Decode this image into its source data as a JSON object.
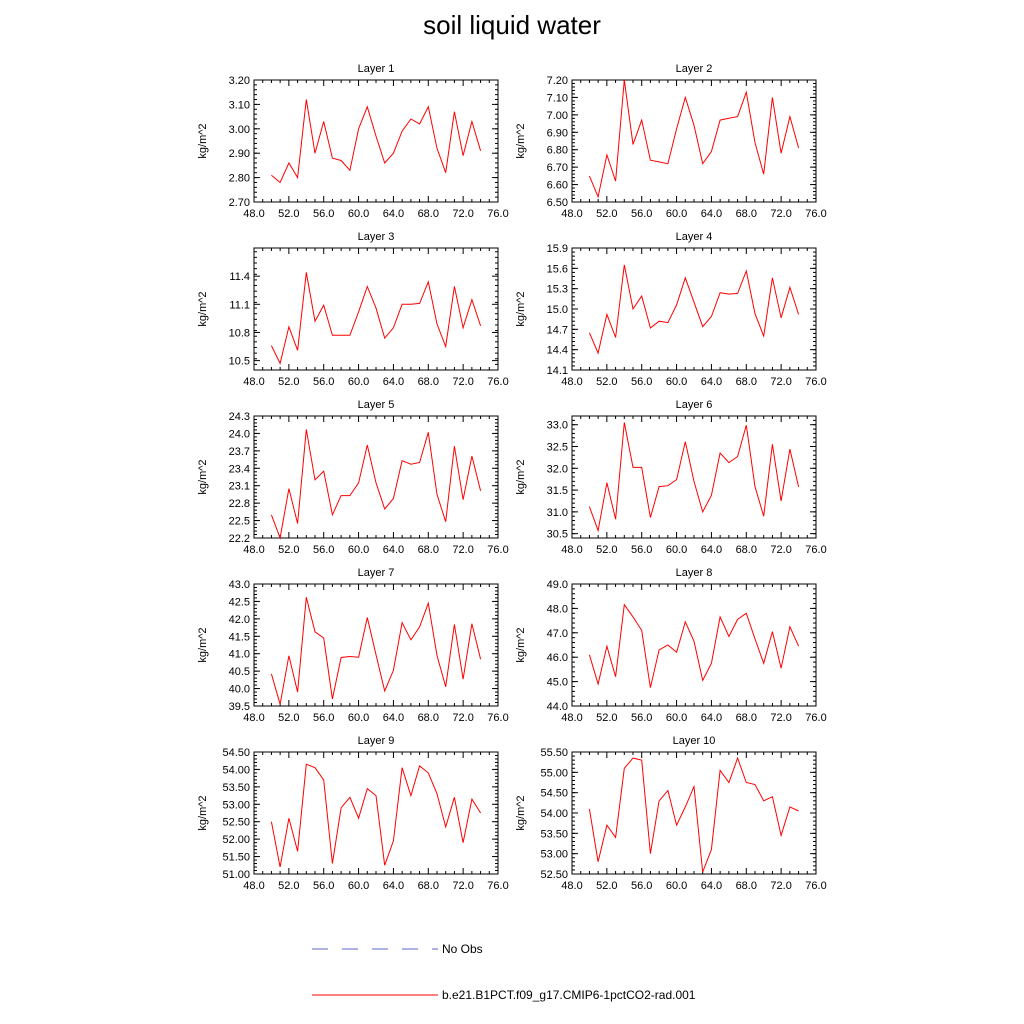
{
  "title": "soil liquid water",
  "legend": [
    {
      "label": "No Obs",
      "color": "#5a64c8",
      "dash": "dashed"
    },
    {
      "label": "b.e21.B1PCT.f09_g17.CMIP6-1pctCO2-rad.001",
      "color": "#ff0000",
      "dash": "solid"
    }
  ],
  "chart_data": [
    {
      "type": "line",
      "title": "Layer 1",
      "ylabel": "kg/m^2",
      "xlim": [
        48,
        76
      ],
      "ylim": [
        2.7,
        3.2
      ],
      "xticks": [
        "48.0",
        "52.0",
        "56.0",
        "60.0",
        "64.0",
        "68.0",
        "72.0",
        "76.0"
      ],
      "yticks": [
        "2.70",
        "2.80",
        "2.90",
        "3.00",
        "3.10",
        "3.20"
      ],
      "x": [
        50,
        51,
        52,
        53,
        54,
        55,
        56,
        57,
        58,
        59,
        60,
        61,
        62,
        63,
        64,
        65,
        66,
        67,
        68,
        69,
        70,
        71,
        72,
        73,
        74
      ],
      "series": [
        {
          "name": "b.e21.B1PCT.f09_g17.CMIP6-1pctCO2-rad.001",
          "values": [
            2.81,
            2.78,
            2.86,
            2.8,
            3.12,
            2.9,
            3.03,
            2.88,
            2.87,
            2.83,
            3.0,
            3.09,
            2.97,
            2.86,
            2.9,
            2.99,
            3.04,
            3.02,
            3.09,
            2.92,
            2.82,
            3.07,
            2.89,
            3.03,
            2.91
          ]
        }
      ]
    },
    {
      "type": "line",
      "title": "Layer 2",
      "ylabel": "kg/m^2",
      "xlim": [
        48,
        76
      ],
      "ylim": [
        6.5,
        7.2
      ],
      "xticks": [
        "48.0",
        "52.0",
        "56.0",
        "60.0",
        "64.0",
        "68.0",
        "72.0",
        "76.0"
      ],
      "yticks": [
        "6.50",
        "6.60",
        "6.70",
        "6.80",
        "6.90",
        "7.00",
        "7.10",
        "7.20"
      ],
      "x": [
        50,
        51,
        52,
        53,
        54,
        55,
        56,
        57,
        58,
        59,
        60,
        61,
        62,
        63,
        64,
        65,
        66,
        67,
        68,
        69,
        70,
        71,
        72,
        73,
        74
      ],
      "series": [
        {
          "name": "b.e21.B1PCT.f09_g17.CMIP6-1pctCO2-rad.001",
          "values": [
            6.65,
            6.53,
            6.77,
            6.62,
            7.2,
            6.83,
            6.97,
            6.74,
            6.73,
            6.72,
            6.92,
            7.1,
            6.94,
            6.72,
            6.79,
            6.97,
            6.98,
            6.99,
            7.13,
            6.84,
            6.66,
            7.1,
            6.78,
            6.99,
            6.81
          ]
        }
      ]
    },
    {
      "type": "line",
      "title": "Layer 3",
      "ylabel": "kg/m^2",
      "xlim": [
        48,
        76
      ],
      "ylim": [
        10.4,
        11.7
      ],
      "xticks": [
        "48.0",
        "52.0",
        "56.0",
        "60.0",
        "64.0",
        "68.0",
        "72.0",
        "76.0"
      ],
      "yticks": [
        "10.5",
        "10.8",
        "11.1",
        "11.4"
      ],
      "x": [
        50,
        51,
        52,
        53,
        54,
        55,
        56,
        57,
        58,
        59,
        60,
        61,
        62,
        63,
        64,
        65,
        66,
        67,
        68,
        69,
        70,
        71,
        72,
        73,
        74
      ],
      "series": [
        {
          "name": "b.e21.B1PCT.f09_g17.CMIP6-1pctCO2-rad.001",
          "values": [
            10.66,
            10.47,
            10.86,
            10.61,
            11.44,
            10.92,
            11.09,
            10.77,
            10.77,
            10.77,
            11.02,
            11.29,
            11.06,
            10.74,
            10.85,
            11.1,
            11.1,
            11.11,
            11.34,
            10.89,
            10.65,
            11.29,
            10.85,
            11.15,
            10.87
          ]
        }
      ]
    },
    {
      "type": "line",
      "title": "Layer 4",
      "ylabel": "kg/m^2",
      "xlim": [
        48,
        76
      ],
      "ylim": [
        14.1,
        15.9
      ],
      "xticks": [
        "48.0",
        "52.0",
        "56.0",
        "60.0",
        "64.0",
        "68.0",
        "72.0",
        "76.0"
      ],
      "yticks": [
        "14.1",
        "14.4",
        "14.7",
        "15.0",
        "15.3",
        "15.6",
        "15.9"
      ],
      "x": [
        50,
        51,
        52,
        53,
        54,
        55,
        56,
        57,
        58,
        59,
        60,
        61,
        62,
        63,
        64,
        65,
        66,
        67,
        68,
        69,
        70,
        71,
        72,
        73,
        74
      ],
      "series": [
        {
          "name": "b.e21.B1PCT.f09_g17.CMIP6-1pctCO2-rad.001",
          "values": [
            14.65,
            14.35,
            14.92,
            14.58,
            15.65,
            15.0,
            15.19,
            14.72,
            14.82,
            14.8,
            15.06,
            15.46,
            15.1,
            14.74,
            14.89,
            15.24,
            15.22,
            15.23,
            15.56,
            14.93,
            14.6,
            15.46,
            14.87,
            15.32,
            14.92
          ]
        }
      ]
    },
    {
      "type": "line",
      "title": "Layer 5",
      "ylabel": "kg/m^2",
      "xlim": [
        48,
        76
      ],
      "ylim": [
        22.2,
        24.3
      ],
      "xticks": [
        "48.0",
        "52.0",
        "56.0",
        "60.0",
        "64.0",
        "68.0",
        "72.0",
        "76.0"
      ],
      "yticks": [
        "22.2",
        "22.5",
        "22.8",
        "23.1",
        "23.4",
        "23.7",
        "24.0",
        "24.3"
      ],
      "x": [
        50,
        51,
        52,
        53,
        54,
        55,
        56,
        57,
        58,
        59,
        60,
        61,
        62,
        63,
        64,
        65,
        66,
        67,
        68,
        69,
        70,
        71,
        72,
        73,
        74
      ],
      "series": [
        {
          "name": "b.e21.B1PCT.f09_g17.CMIP6-1pctCO2-rad.001",
          "values": [
            22.6,
            22.2,
            23.05,
            22.45,
            24.07,
            23.2,
            23.35,
            22.6,
            22.93,
            22.93,
            23.15,
            23.8,
            23.15,
            22.7,
            22.88,
            23.53,
            23.47,
            23.5,
            24.02,
            22.95,
            22.48,
            23.78,
            22.86,
            23.61,
            23.01
          ]
        }
      ]
    },
    {
      "type": "line",
      "title": "Layer 6",
      "ylabel": "kg/m^2",
      "xlim": [
        48,
        76
      ],
      "ylim": [
        30.4,
        33.2
      ],
      "xticks": [
        "48.0",
        "52.0",
        "56.0",
        "60.0",
        "64.0",
        "68.0",
        "72.0",
        "76.0"
      ],
      "yticks": [
        "30.5",
        "31.0",
        "31.5",
        "32.0",
        "32.5",
        "33.0"
      ],
      "x": [
        50,
        51,
        52,
        53,
        54,
        55,
        56,
        57,
        58,
        59,
        60,
        61,
        62,
        63,
        64,
        65,
        66,
        67,
        68,
        69,
        70,
        71,
        72,
        73,
        74
      ],
      "series": [
        {
          "name": "b.e21.B1PCT.f09_g17.CMIP6-1pctCO2-rad.001",
          "values": [
            31.12,
            30.57,
            31.67,
            30.83,
            33.05,
            32.02,
            32.02,
            30.87,
            31.58,
            31.6,
            31.74,
            32.61,
            31.7,
            31.0,
            31.38,
            32.35,
            32.13,
            32.27,
            32.99,
            31.58,
            30.9,
            32.55,
            31.25,
            32.44,
            31.57
          ]
        }
      ]
    },
    {
      "type": "line",
      "title": "Layer 7",
      "ylabel": "kg/m^2",
      "xlim": [
        48,
        76
      ],
      "ylim": [
        39.5,
        43.0
      ],
      "xticks": [
        "48.0",
        "52.0",
        "56.0",
        "60.0",
        "64.0",
        "68.0",
        "72.0",
        "76.0"
      ],
      "yticks": [
        "39.5",
        "40.0",
        "40.5",
        "41.0",
        "41.5",
        "42.0",
        "42.5",
        "43.0"
      ],
      "x": [
        50,
        51,
        52,
        53,
        54,
        55,
        56,
        57,
        58,
        59,
        60,
        61,
        62,
        63,
        64,
        65,
        66,
        67,
        68,
        69,
        70,
        71,
        72,
        73,
        74
      ],
      "series": [
        {
          "name": "b.e21.B1PCT.f09_g17.CMIP6-1pctCO2-rad.001",
          "values": [
            40.42,
            39.55,
            40.94,
            39.9,
            42.62,
            41.63,
            41.45,
            39.7,
            40.89,
            40.92,
            40.9,
            42.04,
            40.97,
            39.93,
            40.52,
            41.89,
            41.4,
            41.77,
            42.45,
            40.95,
            40.05,
            41.84,
            40.27,
            41.86,
            40.84
          ]
        }
      ]
    },
    {
      "type": "line",
      "title": "Layer 8",
      "ylabel": "kg/m^2",
      "xlim": [
        48,
        76
      ],
      "ylim": [
        44.0,
        49.0
      ],
      "xticks": [
        "48.0",
        "52.0",
        "56.0",
        "60.0",
        "64.0",
        "68.0",
        "72.0",
        "76.0"
      ],
      "yticks": [
        "44.0",
        "45.0",
        "46.0",
        "47.0",
        "48.0",
        "49.0"
      ],
      "x": [
        50,
        51,
        52,
        53,
        54,
        55,
        56,
        57,
        58,
        59,
        60,
        61,
        62,
        63,
        64,
        65,
        66,
        67,
        68,
        69,
        70,
        71,
        72,
        73,
        74
      ],
      "series": [
        {
          "name": "b.e21.B1PCT.f09_g17.CMIP6-1pctCO2-rad.001",
          "values": [
            46.1,
            44.9,
            46.45,
            45.2,
            48.15,
            47.65,
            47.1,
            44.75,
            46.3,
            46.5,
            46.2,
            47.45,
            46.65,
            45.05,
            45.75,
            47.65,
            46.85,
            47.55,
            47.8,
            46.75,
            45.75,
            47.05,
            45.55,
            47.25,
            46.45
          ]
        }
      ]
    },
    {
      "type": "line",
      "title": "Layer 9",
      "ylabel": "kg/m^2",
      "xlim": [
        48,
        76
      ],
      "ylim": [
        51.0,
        54.5
      ],
      "xticks": [
        "48.0",
        "52.0",
        "56.0",
        "60.0",
        "64.0",
        "68.0",
        "72.0",
        "76.0"
      ],
      "yticks": [
        "51.00",
        "51.50",
        "52.00",
        "52.50",
        "53.00",
        "53.50",
        "54.00",
        "54.50"
      ],
      "x": [
        50,
        51,
        52,
        53,
        54,
        55,
        56,
        57,
        58,
        59,
        60,
        61,
        62,
        63,
        64,
        65,
        66,
        67,
        68,
        69,
        70,
        71,
        72,
        73,
        74
      ],
      "series": [
        {
          "name": "b.e21.B1PCT.f09_g17.CMIP6-1pctCO2-rad.001",
          "values": [
            52.5,
            51.2,
            52.6,
            51.65,
            54.15,
            54.05,
            53.7,
            51.3,
            52.9,
            53.2,
            52.6,
            53.45,
            53.25,
            51.25,
            51.95,
            54.05,
            53.25,
            54.1,
            53.9,
            53.3,
            52.35,
            53.2,
            51.9,
            53.15,
            52.75
          ]
        }
      ]
    },
    {
      "type": "line",
      "title": "Layer 10",
      "ylabel": "kg/m^2",
      "xlim": [
        48,
        76
      ],
      "ylim": [
        52.5,
        55.5
      ],
      "xticks": [
        "48.0",
        "52.0",
        "56.0",
        "60.0",
        "64.0",
        "68.0",
        "72.0",
        "76.0"
      ],
      "yticks": [
        "52.50",
        "53.00",
        "53.50",
        "54.00",
        "54.50",
        "55.00",
        "55.50"
      ],
      "x": [
        50,
        51,
        52,
        53,
        54,
        55,
        56,
        57,
        58,
        59,
        60,
        61,
        62,
        63,
        64,
        65,
        66,
        67,
        68,
        69,
        70,
        71,
        72,
        73,
        74
      ],
      "series": [
        {
          "name": "b.e21.B1PCT.f09_g17.CMIP6-1pctCO2-rad.001",
          "values": [
            54.1,
            52.8,
            53.7,
            53.4,
            55.1,
            55.35,
            55.3,
            53.0,
            54.3,
            54.55,
            53.7,
            54.15,
            54.65,
            52.55,
            53.1,
            55.05,
            54.75,
            55.35,
            54.75,
            54.7,
            54.3,
            54.4,
            53.45,
            54.15,
            54.05
          ]
        }
      ]
    }
  ]
}
